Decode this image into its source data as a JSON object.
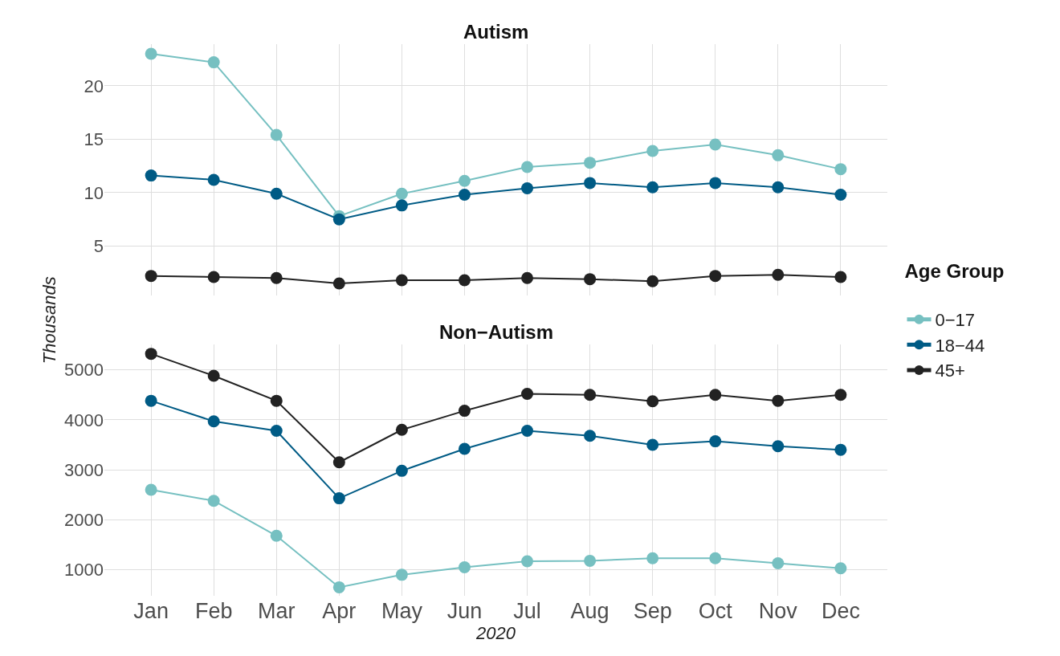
{
  "chart_data": [
    {
      "type": "line",
      "title": "Autism",
      "ylabel": "Thousands",
      "legend_title": "Age Group",
      "legend": "right",
      "grid": true,
      "marker": "circle",
      "line_style": "solid",
      "tick_labels": "y",
      "categories": [
        "Jan",
        "Feb",
        "Mar",
        "Apr",
        "May",
        "Jun",
        "Jul",
        "Aug",
        "Sep",
        "Oct",
        "Nov",
        "Dec"
      ],
      "ylim": [
        0.4,
        23.9
      ],
      "yticks": [
        5,
        10,
        15,
        20
      ],
      "series": [
        {
          "name": "0−17",
          "color": "#76c0c1",
          "values": [
            23.0,
            22.2,
            15.4,
            7.8,
            9.9,
            11.1,
            12.4,
            12.8,
            13.9,
            14.5,
            13.5,
            12.2
          ]
        },
        {
          "name": "18−44",
          "color": "#005b85",
          "values": [
            11.6,
            11.2,
            9.9,
            7.5,
            8.8,
            9.8,
            10.4,
            10.9,
            10.5,
            10.9,
            10.5,
            9.8
          ]
        },
        {
          "name": "45+",
          "color": "#222222",
          "values": [
            2.2,
            2.1,
            2.0,
            1.5,
            1.8,
            1.8,
            2.0,
            1.9,
            1.7,
            2.2,
            2.3,
            2.1
          ]
        }
      ]
    },
    {
      "type": "line",
      "title": "Non−Autism",
      "xlabel": "2020",
      "grid": true,
      "marker": "circle",
      "line_style": "solid",
      "categories": [
        "Jan",
        "Feb",
        "Mar",
        "Apr",
        "May",
        "Jun",
        "Jul",
        "Aug",
        "Sep",
        "Oct",
        "Nov",
        "Dec"
      ],
      "ylim": [
        480,
        5500
      ],
      "yticks": [
        1000,
        2000,
        3000,
        4000,
        5000
      ],
      "series": [
        {
          "color": "#76c0c1",
          "values": [
            2600,
            2380,
            1680,
            650,
            900,
            1050,
            1170,
            1180,
            1230,
            1230,
            1130,
            1030
          ]
        },
        {
          "color": "#005b85",
          "values": [
            4380,
            3970,
            3780,
            2430,
            2980,
            3420,
            3780,
            3680,
            3500,
            3570,
            3470,
            3400
          ]
        },
        {
          "color": "#222222",
          "values": [
            5320,
            4880,
            4380,
            3150,
            3800,
            4180,
            4520,
            4500,
            4370,
            4500,
            4380,
            4500
          ]
        }
      ]
    }
  ]
}
